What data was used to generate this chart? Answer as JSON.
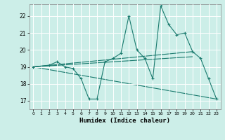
{
  "xlabel": "Humidex (Indice chaleur)",
  "bg_color": "#cceee8",
  "line_color": "#1a7a6e",
  "grid_color": "#ffffff",
  "xlim": [
    -0.5,
    23.5
  ],
  "ylim": [
    16.5,
    22.7
  ],
  "yticks": [
    17,
    18,
    19,
    20,
    21,
    22
  ],
  "xticks": [
    0,
    1,
    2,
    3,
    4,
    5,
    6,
    7,
    8,
    9,
    10,
    11,
    12,
    13,
    14,
    15,
    16,
    17,
    18,
    19,
    20,
    21,
    22,
    23
  ],
  "series": [
    {
      "x": [
        0,
        2,
        3,
        4,
        5,
        6,
        7,
        8,
        9,
        10,
        11,
        12,
        13,
        14,
        15,
        16,
        17,
        18,
        19,
        20,
        21,
        22,
        23
      ],
      "y": [
        19.0,
        19.1,
        19.3,
        19.0,
        18.9,
        18.3,
        17.1,
        17.1,
        19.3,
        19.5,
        19.8,
        22.0,
        20.0,
        19.5,
        18.3,
        22.6,
        21.5,
        20.9,
        21.0,
        19.9,
        19.5,
        18.3,
        17.1
      ]
    },
    {
      "x": [
        0,
        20
      ],
      "y": [
        19.0,
        19.9
      ]
    },
    {
      "x": [
        0,
        20
      ],
      "y": [
        19.0,
        19.6
      ]
    },
    {
      "x": [
        0,
        23
      ],
      "y": [
        19.0,
        17.1
      ]
    }
  ]
}
